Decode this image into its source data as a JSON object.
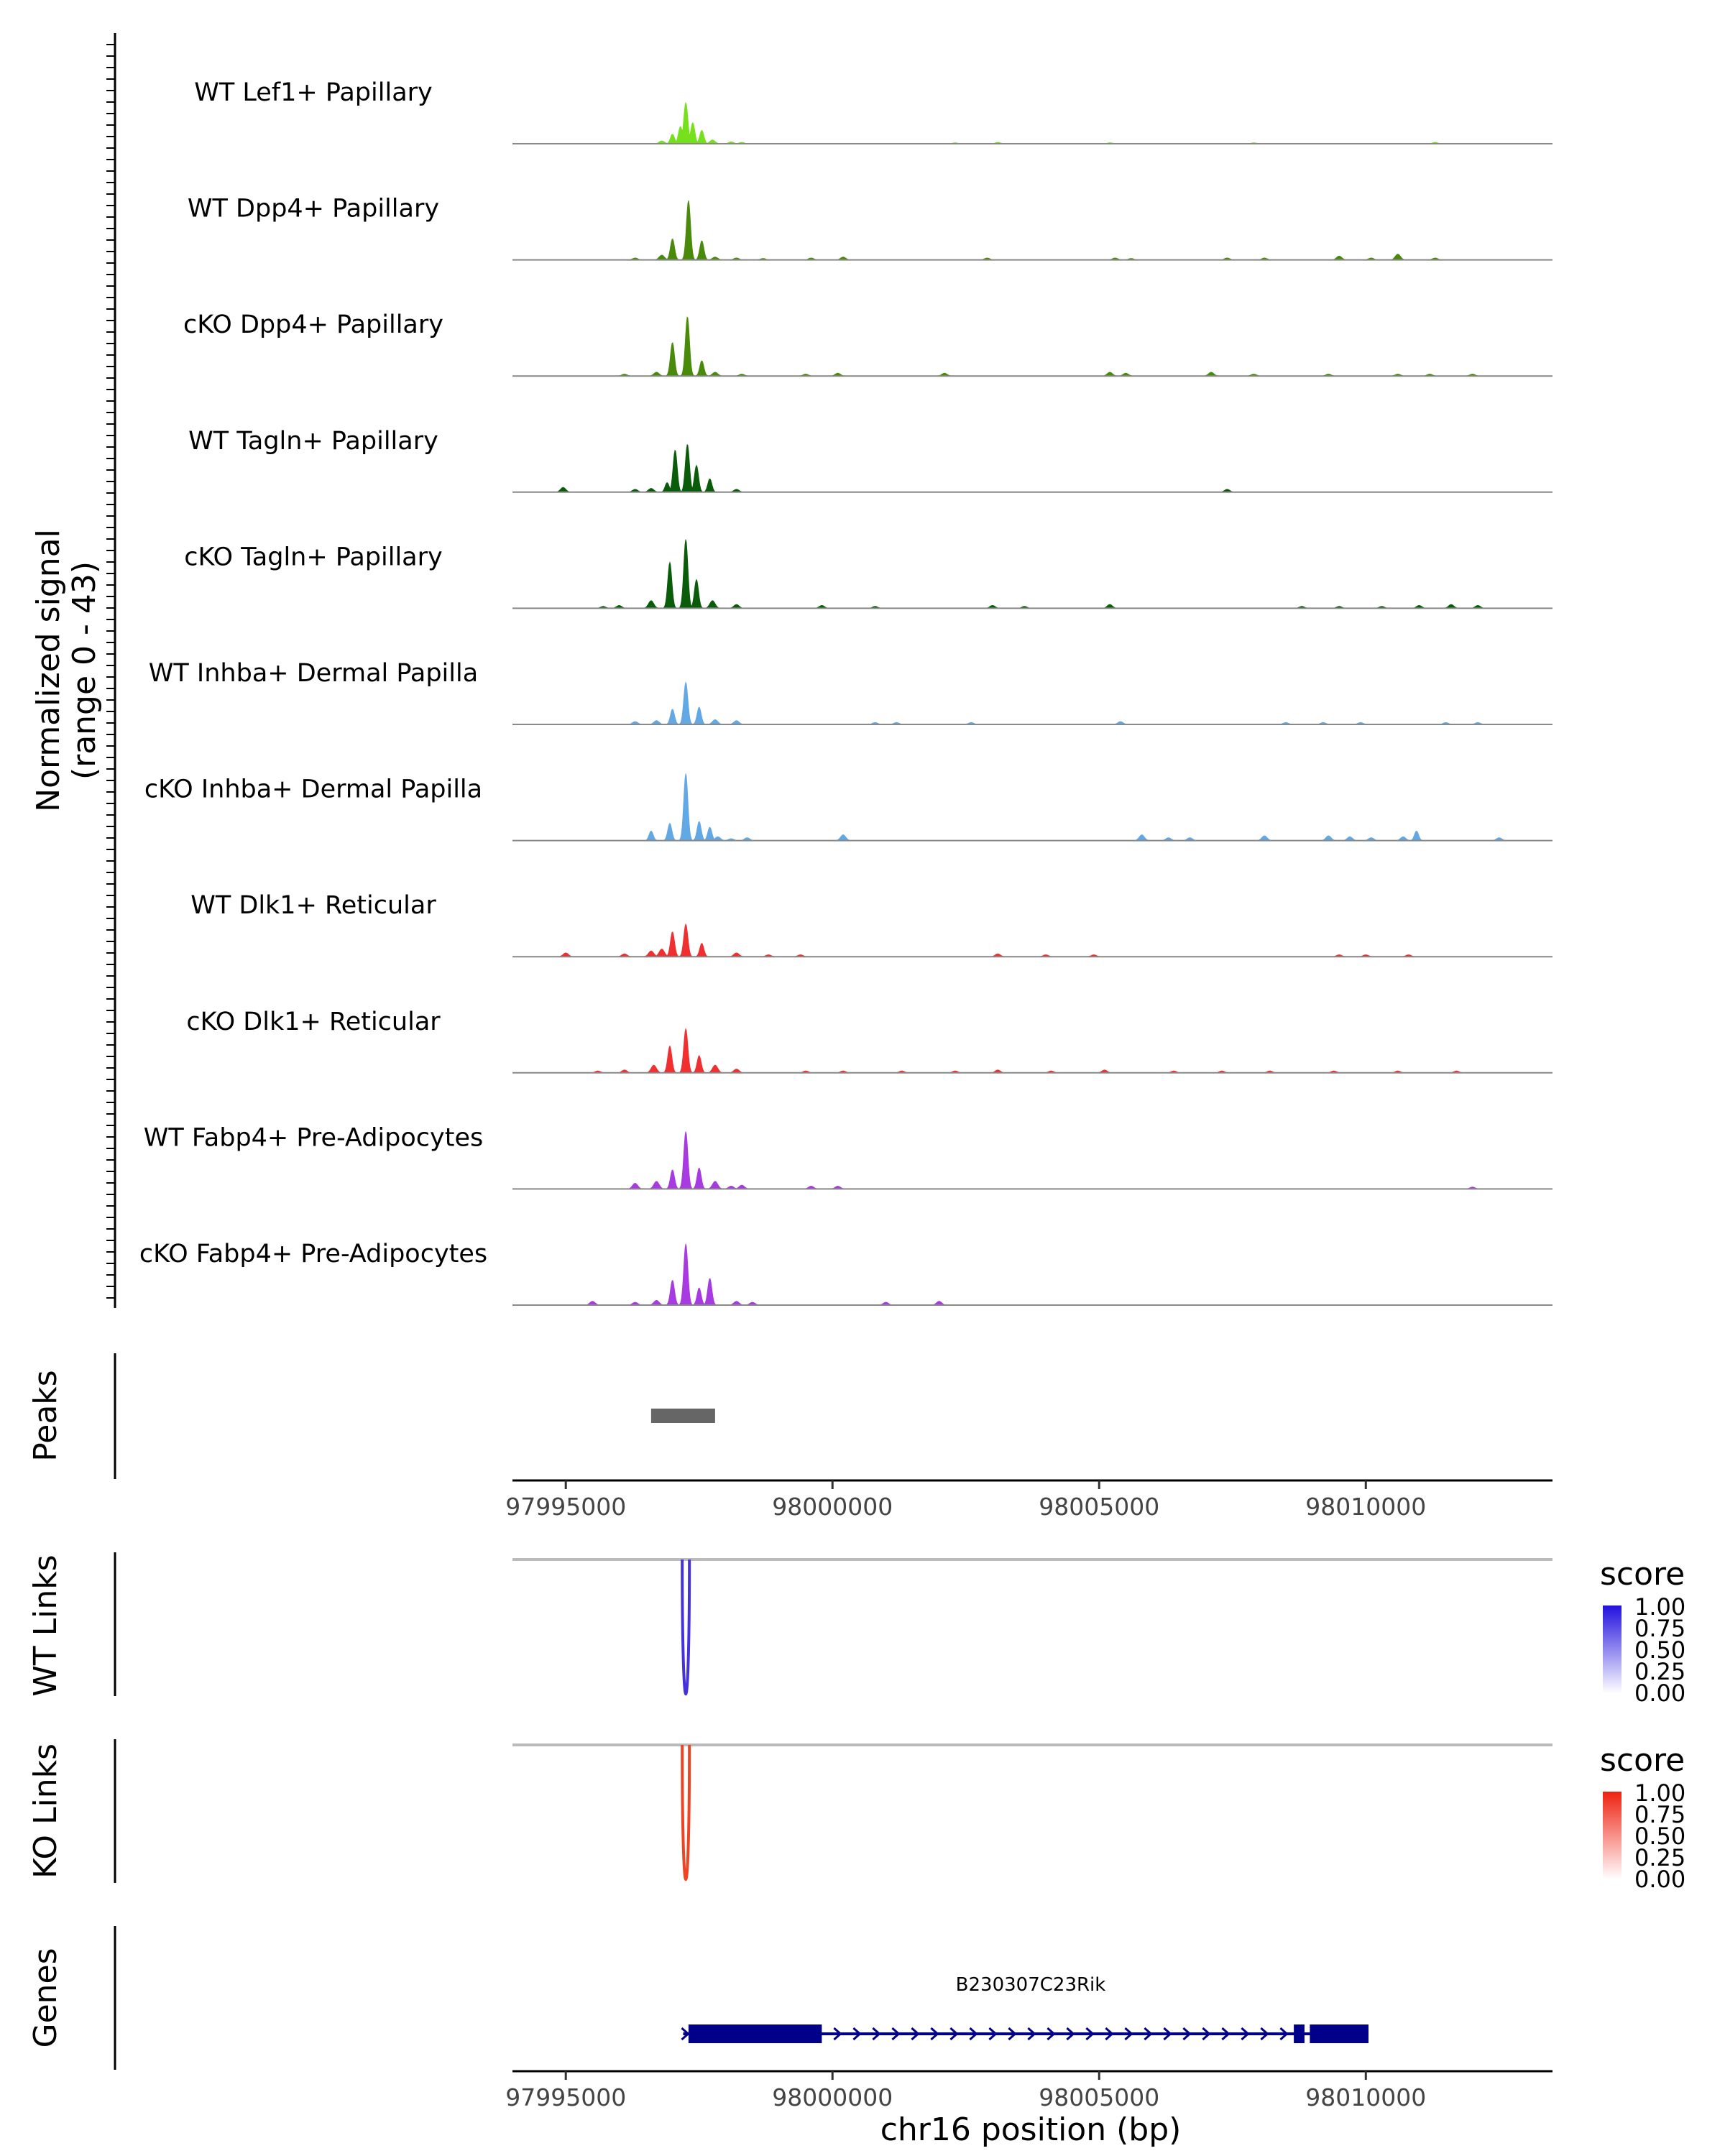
{
  "chart_data": {
    "type": "area",
    "title": "",
    "chromosome": "chr16",
    "xlim": [
      97994000,
      98013500
    ],
    "xticks": [
      97995000,
      98000000,
      98005000,
      98010000
    ],
    "tick_labels": [
      "97995000",
      "98000000",
      "98005000",
      "98010000"
    ],
    "xlabel": "chr16 position (bp)",
    "signal_ylabel": [
      "Normalized signal",
      "(range 0 - 43)"
    ],
    "signal_range": [
      0,
      43
    ],
    "tracks": [
      {
        "name": "WT Lef1+ Papillary",
        "color": "#76e01a",
        "peaks": [
          [
            97996800,
            3
          ],
          [
            97997000,
            10
          ],
          [
            97997150,
            18
          ],
          [
            97997250,
            43
          ],
          [
            97997380,
            22
          ],
          [
            97997550,
            14
          ],
          [
            97997750,
            4
          ],
          [
            97998100,
            2
          ],
          [
            97998300,
            1.5
          ],
          [
            98002300,
            1
          ],
          [
            98003100,
            1.5
          ],
          [
            98005200,
            1
          ],
          [
            98007900,
            1
          ],
          [
            98011300,
            1.5
          ]
        ]
      },
      {
        "name": "WT Dpp4+ Papillary",
        "color": "#4a8a0a",
        "peaks": [
          [
            97996300,
            2
          ],
          [
            97996800,
            5
          ],
          [
            97997000,
            22
          ],
          [
            97997300,
            62
          ],
          [
            97997550,
            20
          ],
          [
            97997800,
            3
          ],
          [
            97998200,
            2
          ],
          [
            97998700,
            1.5
          ],
          [
            97999600,
            2
          ],
          [
            98000200,
            3
          ],
          [
            98002900,
            2
          ],
          [
            98005300,
            2
          ],
          [
            98005600,
            1.5
          ],
          [
            98007400,
            2
          ],
          [
            98008100,
            2
          ],
          [
            98009500,
            4
          ],
          [
            98010100,
            2
          ],
          [
            98010600,
            6
          ],
          [
            98011300,
            2
          ]
        ]
      },
      {
        "name": "cKO Dpp4+ Papillary",
        "color": "#4a8a0a",
        "peaks": [
          [
            97996100,
            2
          ],
          [
            97996700,
            4
          ],
          [
            97997000,
            35
          ],
          [
            97997280,
            62
          ],
          [
            97997550,
            16
          ],
          [
            97997800,
            4
          ],
          [
            97998300,
            2
          ],
          [
            97999500,
            2
          ],
          [
            98000100,
            3
          ],
          [
            98002100,
            3
          ],
          [
            98005200,
            4
          ],
          [
            98005500,
            3
          ],
          [
            98007100,
            4
          ],
          [
            98007900,
            2
          ],
          [
            98009300,
            2
          ],
          [
            98010600,
            2
          ],
          [
            98011200,
            2
          ],
          [
            98012000,
            2
          ]
        ]
      },
      {
        "name": "WT Tagln+ Papillary",
        "color": "#0a5c0a",
        "peaks": [
          [
            97994950,
            5
          ],
          [
            97996300,
            3
          ],
          [
            97996600,
            4
          ],
          [
            97996900,
            10
          ],
          [
            97997050,
            44
          ],
          [
            97997280,
            50
          ],
          [
            97997450,
            28
          ],
          [
            97997700,
            14
          ],
          [
            97998200,
            3
          ],
          [
            98007400,
            3
          ]
        ]
      },
      {
        "name": "cKO Tagln+ Papillary",
        "color": "#0a5c0a",
        "peaks": [
          [
            97995700,
            2
          ],
          [
            97996000,
            3
          ],
          [
            97996600,
            8
          ],
          [
            97996950,
            48
          ],
          [
            97997250,
            72
          ],
          [
            97997450,
            30
          ],
          [
            97997750,
            8
          ],
          [
            97998200,
            4
          ],
          [
            97999800,
            3
          ],
          [
            98000800,
            2
          ],
          [
            98003000,
            3
          ],
          [
            98003600,
            2
          ],
          [
            98005200,
            4
          ],
          [
            98008800,
            2
          ],
          [
            98009500,
            2
          ],
          [
            98010300,
            2
          ],
          [
            98011000,
            3
          ],
          [
            98011600,
            4
          ],
          [
            98012100,
            3
          ]
        ]
      },
      {
        "name": "WT Inhba+ Dermal Papilla",
        "color": "#62a8e5",
        "peaks": [
          [
            97996300,
            3
          ],
          [
            97996700,
            4
          ],
          [
            97997000,
            16
          ],
          [
            97997250,
            44
          ],
          [
            97997500,
            18
          ],
          [
            97997800,
            5
          ],
          [
            97998200,
            4
          ],
          [
            98000800,
            2
          ],
          [
            98001200,
            2
          ],
          [
            98002600,
            2
          ],
          [
            98005400,
            3
          ],
          [
            98008500,
            2
          ],
          [
            98009200,
            2
          ],
          [
            98009900,
            2
          ],
          [
            98011500,
            2
          ],
          [
            98012100,
            2
          ]
        ]
      },
      {
        "name": "cKO Inhba+ Dermal Papilla",
        "color": "#62a8e5",
        "peaks": [
          [
            97996600,
            10
          ],
          [
            97996950,
            18
          ],
          [
            97997250,
            70
          ],
          [
            97997500,
            20
          ],
          [
            97997700,
            14
          ],
          [
            97997850,
            4
          ],
          [
            97998100,
            2
          ],
          [
            97998400,
            3
          ],
          [
            98000200,
            6
          ],
          [
            98005800,
            6
          ],
          [
            98006300,
            3
          ],
          [
            98006700,
            3
          ],
          [
            98008100,
            5
          ],
          [
            98009300,
            5
          ],
          [
            98009700,
            4
          ],
          [
            98010100,
            3
          ],
          [
            98010700,
            4
          ],
          [
            98010950,
            10
          ],
          [
            98012500,
            3
          ]
        ]
      },
      {
        "name": "WT Dlk1+ Reticular",
        "color": "#f03030",
        "peaks": [
          [
            97995000,
            4
          ],
          [
            97996100,
            3
          ],
          [
            97996600,
            6
          ],
          [
            97996800,
            8
          ],
          [
            97997000,
            26
          ],
          [
            97997250,
            34
          ],
          [
            97997550,
            14
          ],
          [
            97998200,
            4
          ],
          [
            97998800,
            2
          ],
          [
            97999400,
            2
          ],
          [
            98003100,
            3
          ],
          [
            98004000,
            2
          ],
          [
            98004900,
            2
          ],
          [
            98009500,
            2
          ],
          [
            98010000,
            2
          ],
          [
            98010800,
            2
          ]
        ]
      },
      {
        "name": "cKO Dlk1+ Reticular",
        "color": "#f03030",
        "peaks": [
          [
            97995600,
            2
          ],
          [
            97996100,
            3
          ],
          [
            97996650,
            8
          ],
          [
            97996950,
            28
          ],
          [
            97997250,
            46
          ],
          [
            97997500,
            18
          ],
          [
            97997800,
            8
          ],
          [
            97998200,
            4
          ],
          [
            97999500,
            2
          ],
          [
            98000200,
            2
          ],
          [
            98001300,
            2
          ],
          [
            98002300,
            2
          ],
          [
            98003100,
            3
          ],
          [
            98004100,
            2
          ],
          [
            98005100,
            3
          ],
          [
            98006400,
            2
          ],
          [
            98007300,
            2
          ],
          [
            98008200,
            2
          ],
          [
            98009400,
            2
          ],
          [
            98010600,
            2
          ],
          [
            98011700,
            2
          ]
        ]
      },
      {
        "name": "WT Fabp4+ Pre-Adipocytes",
        "color": "#a83ae2",
        "peaks": [
          [
            97996300,
            6
          ],
          [
            97996700,
            8
          ],
          [
            97997000,
            20
          ],
          [
            97997250,
            60
          ],
          [
            97997500,
            22
          ],
          [
            97997800,
            8
          ],
          [
            97998100,
            3
          ],
          [
            97998300,
            4
          ],
          [
            97999600,
            3
          ],
          [
            98000100,
            3
          ],
          [
            98012000,
            2
          ]
        ]
      },
      {
        "name": "cKO Fabp4+ Pre-Adipocytes",
        "color": "#a83ae2",
        "peaks": [
          [
            97995500,
            4
          ],
          [
            97996300,
            3
          ],
          [
            97996700,
            5
          ],
          [
            97997000,
            26
          ],
          [
            97997250,
            64
          ],
          [
            97997500,
            18
          ],
          [
            97997700,
            28
          ],
          [
            97998200,
            4
          ],
          [
            97998500,
            3
          ],
          [
            98001000,
            3
          ],
          [
            98002000,
            4
          ]
        ]
      }
    ],
    "peaks_track": {
      "label": "Peaks",
      "regions": [
        [
          97996600,
          97997800
        ]
      ]
    },
    "link_tracks": [
      {
        "label": "WT Links",
        "color": "#4433dd",
        "anchor": 97997250,
        "score": 1.0,
        "legend_title": "score",
        "legend_ticks": [
          "1.00",
          "0.75",
          "0.50",
          "0.25",
          "0.00"
        ]
      },
      {
        "label": "KO Links",
        "color": "#ee4422",
        "anchor": 97997250,
        "score": 1.0,
        "legend_title": "score",
        "legend_ticks": [
          "1.00",
          "0.75",
          "0.50",
          "0.25",
          "0.00"
        ]
      }
    ],
    "genes_track": {
      "label": "Genes",
      "gene": "B230307C23Rik",
      "strand": "+",
      "color": "#00008b",
      "exons": [
        [
          97997300,
          97999800
        ],
        [
          98008650,
          98008850
        ],
        [
          98008950,
          98010050
        ]
      ],
      "span": [
        97997200,
        98010050
      ]
    }
  }
}
